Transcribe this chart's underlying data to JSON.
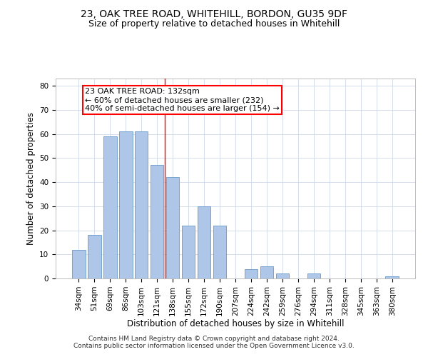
{
  "title1": "23, OAK TREE ROAD, WHITEHILL, BORDON, GU35 9DF",
  "title2": "Size of property relative to detached houses in Whitehill",
  "xlabel": "Distribution of detached houses by size in Whitehill",
  "ylabel": "Number of detached properties",
  "categories": [
    "34sqm",
    "51sqm",
    "69sqm",
    "86sqm",
    "103sqm",
    "121sqm",
    "138sqm",
    "155sqm",
    "172sqm",
    "190sqm",
    "207sqm",
    "224sqm",
    "242sqm",
    "259sqm",
    "276sqm",
    "294sqm",
    "311sqm",
    "328sqm",
    "345sqm",
    "363sqm",
    "380sqm"
  ],
  "values": [
    12,
    18,
    59,
    61,
    61,
    47,
    42,
    22,
    30,
    22,
    0,
    4,
    5,
    2,
    0,
    2,
    0,
    0,
    0,
    0,
    1
  ],
  "bar_color": "#aec6e8",
  "bar_edge_color": "#6699cc",
  "reference_line_x": 5.5,
  "annotation_text": "23 OAK TREE ROAD: 132sqm\n← 60% of detached houses are smaller (232)\n40% of semi-detached houses are larger (154) →",
  "annotation_box_color": "white",
  "annotation_box_edge": "red",
  "ref_line_color": "red",
  "ylim": [
    0,
    83
  ],
  "yticks": [
    0,
    10,
    20,
    30,
    40,
    50,
    60,
    70,
    80
  ],
  "footer1": "Contains HM Land Registry data © Crown copyright and database right 2024.",
  "footer2": "Contains public sector information licensed under the Open Government Licence v3.0.",
  "title1_fontsize": 10,
  "title2_fontsize": 9,
  "axis_label_fontsize": 8.5,
  "tick_fontsize": 7.5,
  "annotation_fontsize": 8,
  "footer_fontsize": 6.5
}
